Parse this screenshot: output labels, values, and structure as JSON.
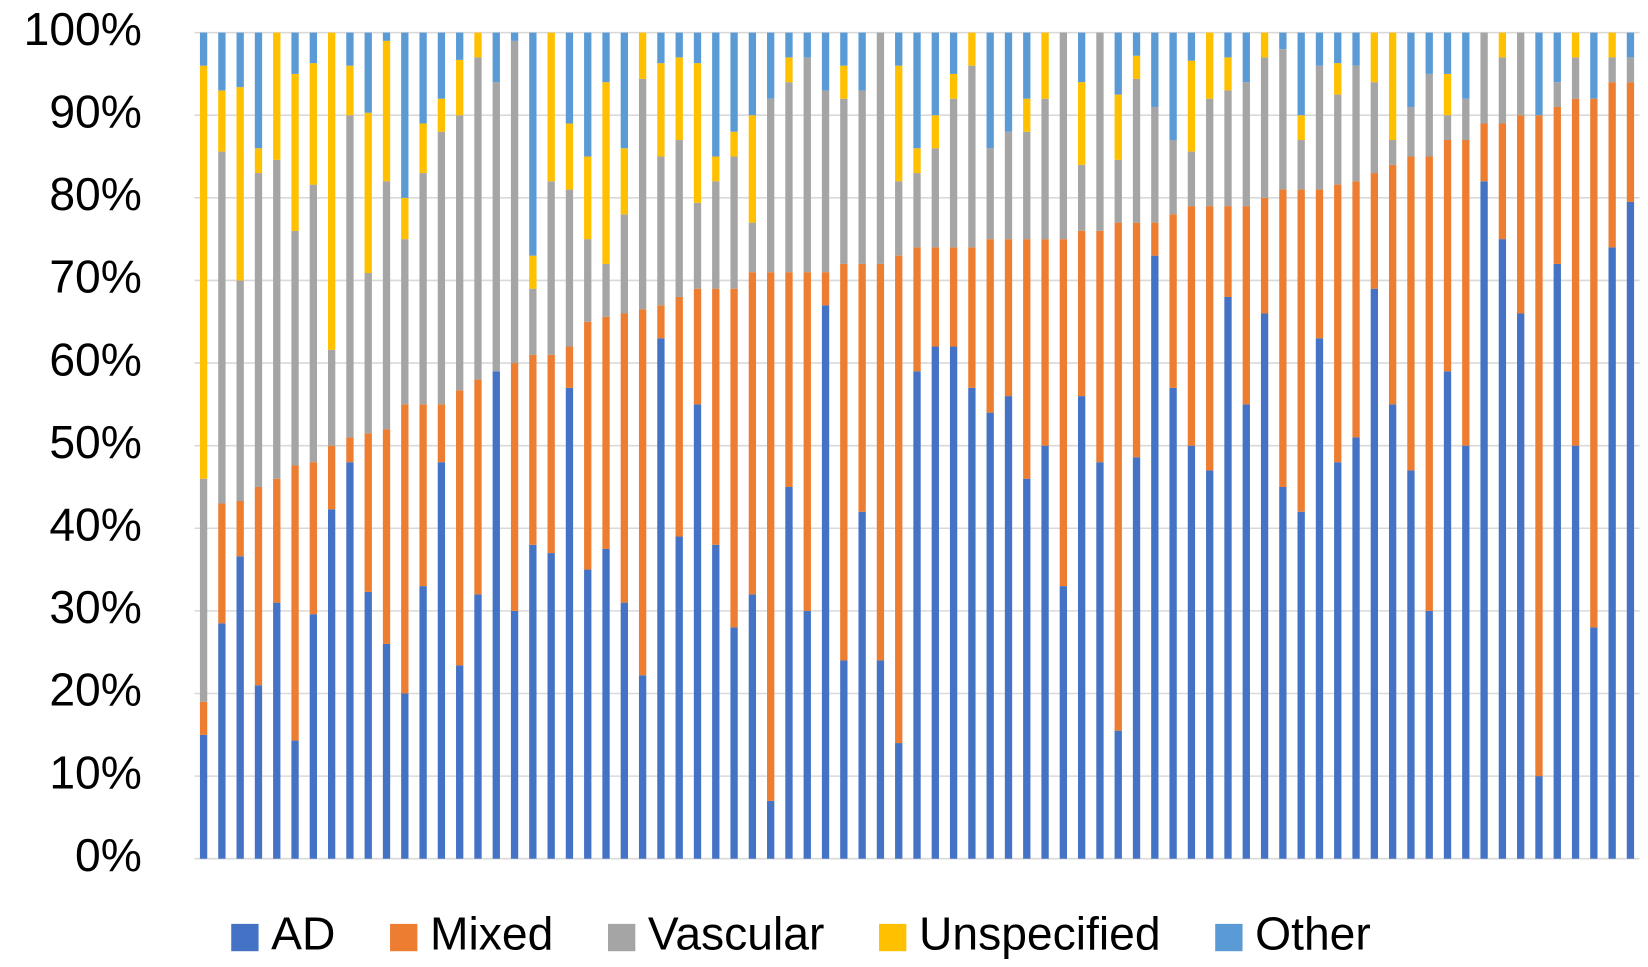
{
  "chart_data": {
    "type": "stacked_bar",
    "categories": [
      null,
      null,
      null,
      null,
      null,
      null,
      null,
      null,
      null,
      null,
      null,
      null,
      null,
      null,
      null,
      null,
      null,
      null,
      null,
      null,
      null,
      null,
      null,
      null,
      null,
      null,
      null,
      null,
      null,
      null,
      null,
      null,
      null,
      null,
      null,
      null,
      null,
      null,
      null,
      null,
      null,
      null,
      null,
      null,
      null,
      null,
      null,
      null,
      null,
      null,
      null,
      null,
      null,
      null,
      null,
      null,
      null,
      null,
      null,
      null,
      null,
      null,
      null,
      null,
      null,
      null,
      null,
      null,
      null,
      null,
      null,
      null,
      null,
      null,
      null,
      null,
      null,
      null,
      null
    ],
    "series": [
      {
        "name": "AD",
        "color": "#4472c4",
        "values": [
          15,
          28.5,
          36.6,
          21,
          31,
          14.3,
          29.6,
          42.3,
          48,
          32.3,
          26,
          20,
          33,
          48,
          23.4,
          32,
          59,
          30,
          38,
          37,
          57,
          35,
          37.5,
          31,
          22.2,
          63,
          39,
          55,
          38,
          28,
          32,
          7,
          45,
          30,
          67,
          24,
          42,
          24,
          14,
          59,
          62,
          62,
          57,
          54,
          56,
          46,
          50,
          33,
          56,
          48,
          15.5,
          48.6,
          73,
          57,
          50,
          47,
          68,
          55,
          66,
          45,
          42,
          63,
          48,
          51,
          69,
          55,
          47,
          30,
          59,
          50,
          82,
          75,
          66,
          10,
          72,
          50,
          28,
          74,
          79.5
        ]
      },
      {
        "name": "Mixed",
        "color": "#ed7d31",
        "values": [
          4,
          14.5,
          6.7,
          24,
          15,
          33.3,
          18.4,
          7.7,
          3,
          19.2,
          26,
          35,
          22,
          7,
          33.3,
          26,
          0,
          30,
          23,
          24,
          5,
          30,
          28.1,
          35,
          44.3,
          4,
          29,
          14,
          31,
          41,
          39,
          64,
          26,
          41,
          4,
          48,
          30,
          48,
          59,
          15,
          12,
          12,
          17,
          21,
          19,
          29,
          25,
          42,
          20,
          28,
          61.5,
          28.4,
          4,
          21,
          29,
          32,
          11,
          24,
          14,
          36,
          39,
          18,
          33.6,
          31,
          14,
          29,
          38,
          55,
          28,
          37,
          7,
          14,
          24,
          80,
          19,
          42,
          64,
          20,
          14.5
        ]
      },
      {
        "name": "Vascular",
        "color": "#a5a5a5",
        "values": [
          27,
          42.6,
          26.7,
          38,
          38.6,
          28.4,
          33.6,
          11.6,
          39,
          19.4,
          30,
          20,
          28,
          33,
          33.3,
          39,
          35,
          39,
          8,
          21,
          19,
          10,
          6.4,
          12,
          27.9,
          18,
          19,
          10.4,
          13,
          16,
          6,
          21,
          23,
          26,
          22,
          20,
          21,
          28,
          9,
          9,
          12,
          18,
          22,
          11,
          13,
          13,
          17,
          25,
          8,
          24,
          7.6,
          17.4,
          14,
          9,
          6.6,
          13,
          14,
          15,
          17,
          17,
          6,
          15,
          10.9,
          14,
          11,
          3,
          6,
          10,
          3,
          5,
          11,
          8,
          10,
          0,
          3,
          5,
          0,
          3,
          3
        ]
      },
      {
        "name": "Unspecified",
        "color": "#ffc000",
        "values": [
          50,
          7.4,
          23.4,
          3,
          15.4,
          19,
          14.7,
          38.4,
          6,
          19.4,
          17,
          5,
          6,
          4,
          6.7,
          3,
          0,
          0,
          4,
          18,
          8,
          10,
          22,
          8,
          5.6,
          11.3,
          10,
          16.9,
          3,
          3,
          13,
          0,
          3,
          0,
          0,
          4,
          0,
          0,
          14,
          3,
          4,
          3,
          4,
          0,
          0,
          4,
          8,
          0,
          10,
          0,
          7.9,
          2.8,
          0,
          0,
          11,
          8,
          4,
          0,
          3,
          0,
          3,
          0,
          3.8,
          0,
          6,
          13,
          0,
          0,
          5,
          0,
          0,
          3,
          0,
          0,
          0,
          3,
          0,
          3,
          0
        ]
      },
      {
        "name": "Other",
        "color": "#5b9bd5",
        "values": [
          4,
          7,
          6.6,
          14,
          0,
          5,
          3.7,
          0,
          4,
          9.7,
          1,
          20,
          11,
          8,
          3.3,
          0,
          6,
          1,
          27,
          0,
          11,
          15,
          6,
          14,
          0,
          3.7,
          3,
          3.7,
          15,
          12,
          10,
          8,
          3,
          3,
          7,
          4,
          7,
          0,
          4,
          14,
          10,
          5,
          0,
          14,
          12,
          8,
          0,
          0,
          6,
          0,
          7.5,
          2.8,
          9,
          13,
          3.4,
          0,
          3,
          6,
          0,
          2,
          10,
          4,
          3.7,
          4,
          0,
          0,
          9,
          5,
          5,
          8,
          0,
          0,
          0,
          10,
          6,
          0,
          8,
          0,
          3
        ]
      }
    ],
    "ylim": [
      0,
      100
    ],
    "yticks": [
      {
        "value": 0,
        "label": "0%"
      },
      {
        "value": 10,
        "label": "10%"
      },
      {
        "value": 20,
        "label": "20%"
      },
      {
        "value": 30,
        "label": "30%"
      },
      {
        "value": 40,
        "label": "40%"
      },
      {
        "value": 50,
        "label": "50%"
      },
      {
        "value": 60,
        "label": "60%"
      },
      {
        "value": 70,
        "label": "70%"
      },
      {
        "value": 80,
        "label": "80%"
      },
      {
        "value": 90,
        "label": "90%"
      },
      {
        "value": 100,
        "label": "100%"
      }
    ],
    "grid": true,
    "legend": "bottom"
  }
}
